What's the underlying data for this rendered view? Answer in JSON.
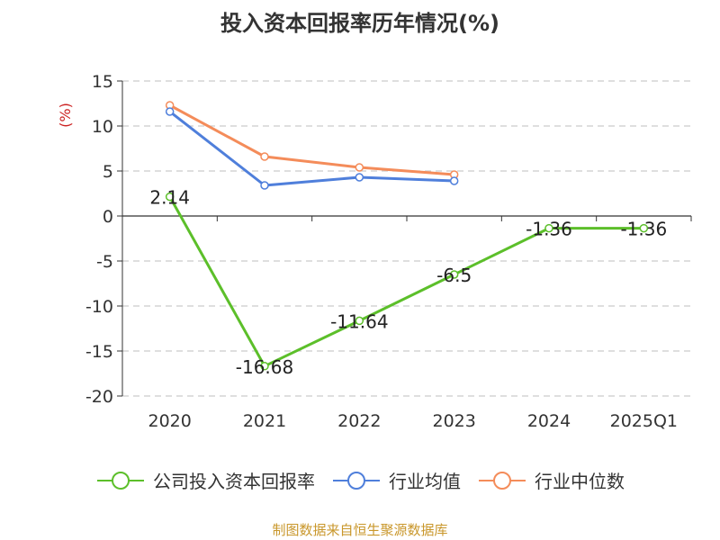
{
  "chart_data": {
    "type": "line",
    "title": "投入资本回报率历年情况(%)",
    "ylabel": "(%)",
    "xlabel": "",
    "categories": [
      "2020",
      "2021",
      "2022",
      "2023",
      "2024",
      "2025Q1"
    ],
    "ylim": [
      -20,
      15
    ],
    "yticks": [
      15,
      10,
      5,
      0,
      -5,
      -10,
      -15,
      -20
    ],
    "grid": true,
    "legend_position": "bottom",
    "series": [
      {
        "name": "公司投入资本回报率",
        "color": "#5cbf2a",
        "values": [
          2.14,
          -16.68,
          -11.64,
          -6.5,
          -1.36,
          -1.36
        ],
        "labels": [
          "2.14",
          "-16.68",
          "-11.64",
          "-6.5",
          "-1.36",
          "-1.36"
        ]
      },
      {
        "name": "行业均值",
        "color": "#4f7fdb",
        "values": [
          11.6,
          3.4,
          4.3,
          3.9,
          null,
          null
        ]
      },
      {
        "name": "行业中位数",
        "color": "#f48c5a",
        "values": [
          12.3,
          6.6,
          5.4,
          4.6,
          null,
          null
        ]
      }
    ]
  },
  "source": "制图数据来自恒生聚源数据库"
}
